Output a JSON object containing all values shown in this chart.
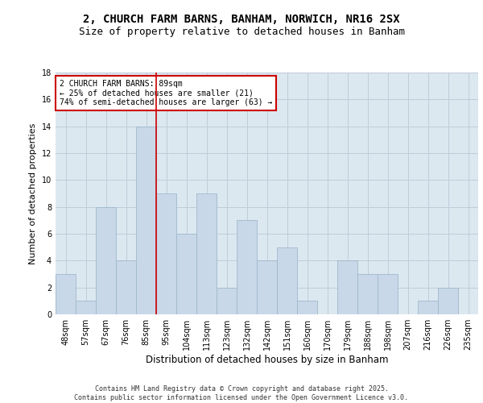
{
  "title1": "2, CHURCH FARM BARNS, BANHAM, NORWICH, NR16 2SX",
  "title2": "Size of property relative to detached houses in Banham",
  "xlabel": "Distribution of detached houses by size in Banham",
  "ylabel": "Number of detached properties",
  "categories": [
    "48sqm",
    "57sqm",
    "67sqm",
    "76sqm",
    "85sqm",
    "95sqm",
    "104sqm",
    "113sqm",
    "123sqm",
    "132sqm",
    "142sqm",
    "151sqm",
    "160sqm",
    "170sqm",
    "179sqm",
    "188sqm",
    "198sqm",
    "207sqm",
    "216sqm",
    "226sqm",
    "235sqm"
  ],
  "values": [
    3,
    1,
    8,
    4,
    14,
    9,
    6,
    9,
    2,
    7,
    4,
    5,
    1,
    0,
    4,
    3,
    3,
    0,
    1,
    2,
    0
  ],
  "bar_color": "#c8d8e8",
  "bar_edge_color": "#a0b8cc",
  "red_line_index": 4,
  "annotation_text": "2 CHURCH FARM BARNS: 89sqm\n← 25% of detached houses are smaller (21)\n74% of semi-detached houses are larger (63) →",
  "annotation_box_color": "#ffffff",
  "annotation_box_edge": "#cc0000",
  "ylim": [
    0,
    18
  ],
  "yticks": [
    0,
    2,
    4,
    6,
    8,
    10,
    12,
    14,
    16,
    18
  ],
  "grid_color": "#c0ccd8",
  "bg_color": "#dce8f0",
  "footer": "Contains HM Land Registry data © Crown copyright and database right 2025.\nContains public sector information licensed under the Open Government Licence v3.0.",
  "title_fontsize": 10,
  "subtitle_fontsize": 9,
  "axis_label_fontsize": 8,
  "tick_fontsize": 7,
  "footer_fontsize": 6,
  "annotation_fontsize": 7
}
